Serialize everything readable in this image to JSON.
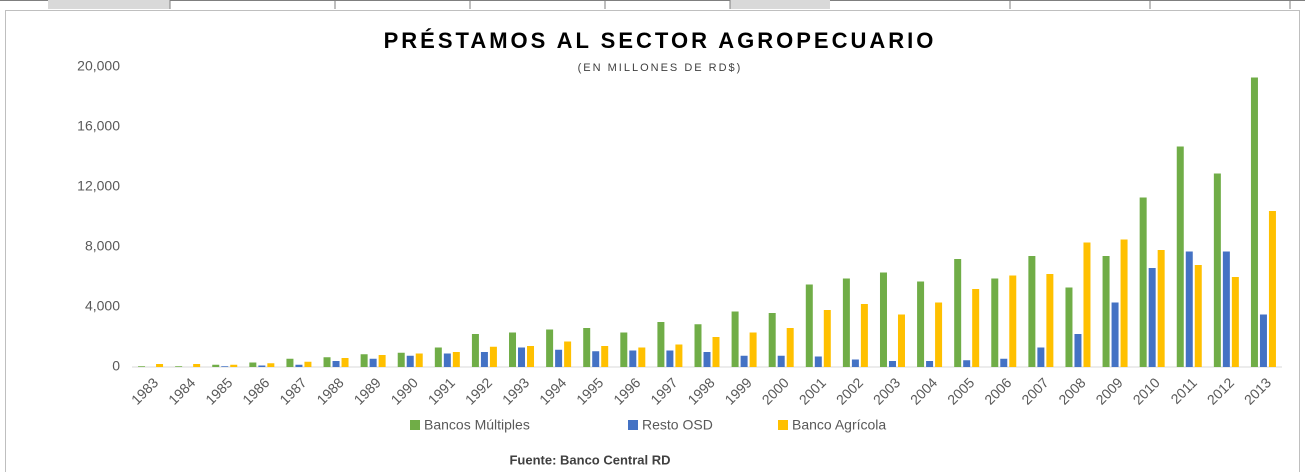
{
  "chart_data": {
    "type": "bar",
    "title": "PRÉSTAMOS AL SECTOR AGROPECUARIO",
    "subtitle": "(EN MILLONES DE RD$)",
    "source": "Fuente: Banco Central RD",
    "categories": [
      "1983",
      "1984",
      "1985",
      "1986",
      "1987",
      "1988",
      "1989",
      "1990",
      "1991",
      "1992",
      "1993",
      "1994",
      "1995",
      "1996",
      "1997",
      "1998",
      "1999",
      "2000",
      "2001",
      "2002",
      "2003",
      "2004",
      "2005",
      "2006",
      "2007",
      "2008",
      "2009",
      "2010",
      "2011",
      "2012",
      "2013"
    ],
    "series": [
      {
        "name": "Bancos Múltiples",
        "color": "#70ad47",
        "values": [
          50,
          50,
          150,
          300,
          550,
          650,
          850,
          950,
          1300,
          2200,
          2300,
          2500,
          2600,
          2300,
          3000,
          2850,
          3700,
          3600,
          5500,
          5900,
          6300,
          5700,
          7200,
          5900,
          7400,
          5300,
          7400,
          11300,
          14700,
          12900,
          19300
        ]
      },
      {
        "name": "Resto OSD",
        "color": "#4472c4",
        "values": [
          0,
          0,
          50,
          100,
          150,
          400,
          550,
          750,
          900,
          1000,
          1300,
          1150,
          1050,
          1100,
          1100,
          1000,
          750,
          750,
          700,
          500,
          400,
          400,
          450,
          550,
          1300,
          2200,
          4300,
          6600,
          7700,
          7700,
          3500
        ]
      },
      {
        "name": "Banco Agrícola",
        "color": "#ffc000",
        "values": [
          200,
          200,
          150,
          250,
          350,
          600,
          800,
          900,
          1000,
          1350,
          1400,
          1700,
          1400,
          1300,
          1500,
          2000,
          2300,
          2600,
          3800,
          4200,
          3500,
          4300,
          5200,
          6100,
          6200,
          8300,
          8500,
          7800,
          6800,
          6000,
          10400
        ]
      }
    ],
    "ylim": [
      0,
      20000
    ],
    "yticks": [
      0,
      {
        "value": 4000,
        "label": "4,000"
      },
      {
        "value": 8000,
        "label": "8,000"
      },
      {
        "value": 12000,
        "label": "12,000"
      },
      {
        "value": 16000,
        "label": "16,000"
      },
      {
        "value": 20000,
        "label": "20,000"
      }
    ],
    "grid": false,
    "legend": "bottom"
  }
}
